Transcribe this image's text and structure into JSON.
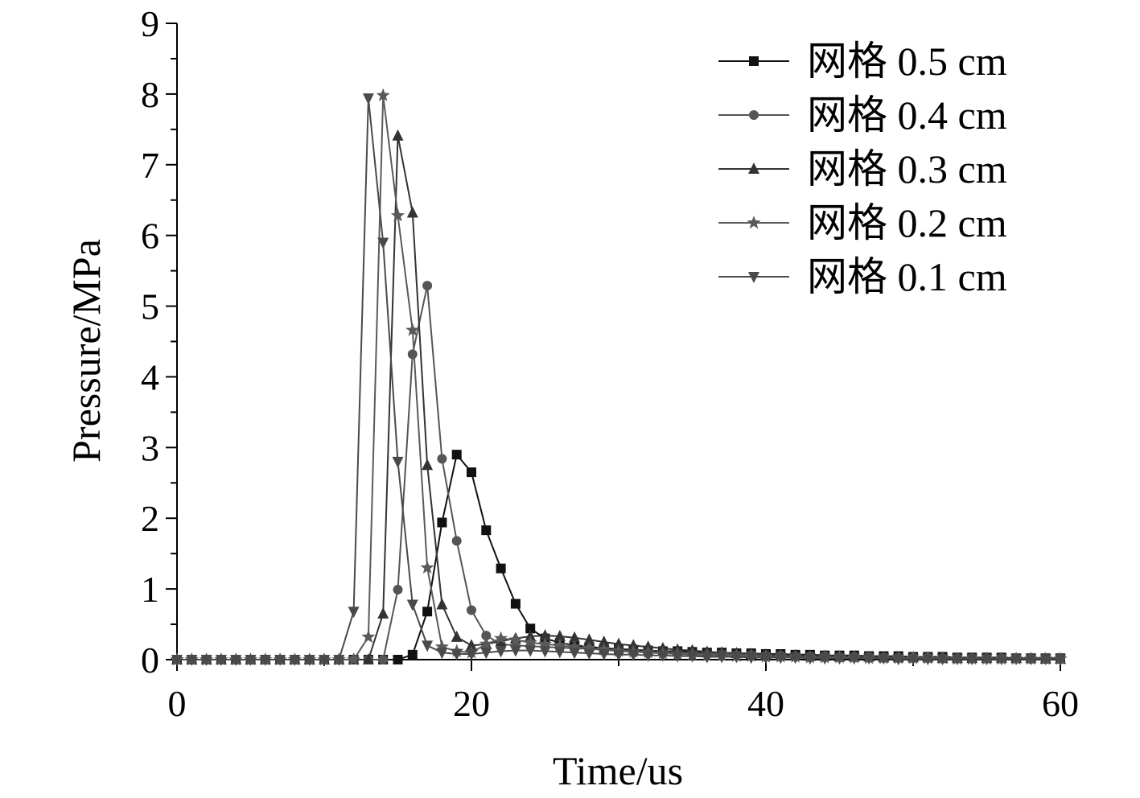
{
  "chart_data": {
    "type": "line",
    "title": "",
    "xlabel": "Time/us",
    "ylabel": "Pressure/MPa",
    "xlim": [
      0,
      60
    ],
    "ylim": [
      0,
      9
    ],
    "xticks": [
      0,
      20,
      40,
      60
    ],
    "yticks": [
      0,
      1,
      2,
      3,
      4,
      5,
      6,
      7,
      8,
      9
    ],
    "grid": false,
    "legend_position": "top-right",
    "x": [
      0,
      1,
      2,
      3,
      4,
      5,
      6,
      7,
      8,
      9,
      10,
      11,
      12,
      13,
      14,
      15,
      16,
      17,
      18,
      19,
      20,
      21,
      22,
      23,
      24,
      25,
      26,
      27,
      28,
      29,
      30,
      31,
      32,
      33,
      34,
      35,
      36,
      37,
      38,
      39,
      40,
      41,
      42,
      43,
      44,
      45,
      46,
      47,
      48,
      49,
      50,
      51,
      52,
      53,
      54,
      55,
      56,
      57,
      58,
      59,
      60
    ],
    "series": [
      {
        "name": "网格 0.5 cm",
        "marker": "square",
        "color": "#111111",
        "values": [
          0,
          0,
          0,
          0,
          0,
          0,
          0,
          0,
          0,
          0,
          0,
          0,
          0,
          0,
          0,
          0,
          0.07,
          0.68,
          1.94,
          2.9,
          2.65,
          1.83,
          1.29,
          0.79,
          0.44,
          0.3,
          0.24,
          0.2,
          0.18,
          0.16,
          0.15,
          0.14,
          0.13,
          0.12,
          0.12,
          0.11,
          0.1,
          0.1,
          0.09,
          0.09,
          0.08,
          0.08,
          0.07,
          0.07,
          0.06,
          0.06,
          0.06,
          0.05,
          0.05,
          0.05,
          0.04,
          0.04,
          0.04,
          0.03,
          0.03,
          0.03,
          0.03,
          0.02,
          0.02,
          0.02,
          0.02
        ]
      },
      {
        "name": "网格 0.4 cm",
        "marker": "circle",
        "color": "#555555",
        "values": [
          0,
          0,
          0,
          0,
          0,
          0,
          0,
          0,
          0,
          0,
          0,
          0,
          0,
          0,
          0,
          0.99,
          4.32,
          5.29,
          2.84,
          1.68,
          0.7,
          0.34,
          0.22,
          0.2,
          0.19,
          0.18,
          0.17,
          0.16,
          0.15,
          0.14,
          0.13,
          0.12,
          0.11,
          0.1,
          0.1,
          0.09,
          0.08,
          0.08,
          0.07,
          0.07,
          0.06,
          0.06,
          0.05,
          0.05,
          0.05,
          0.04,
          0.04,
          0.04,
          0.03,
          0.03,
          0.03,
          0.03,
          0.02,
          0.02,
          0.02,
          0.02,
          0.02,
          0.02,
          0.01,
          0.01,
          0.01
        ]
      },
      {
        "name": "网格 0.3 cm",
        "marker": "triangle-up",
        "color": "#333333",
        "values": [
          0,
          0,
          0,
          0,
          0,
          0,
          0,
          0,
          0,
          0,
          0,
          0,
          0,
          0,
          0.65,
          7.41,
          6.32,
          2.75,
          0.78,
          0.32,
          0.2,
          0.22,
          0.26,
          0.3,
          0.33,
          0.34,
          0.33,
          0.31,
          0.28,
          0.25,
          0.22,
          0.2,
          0.18,
          0.16,
          0.14,
          0.13,
          0.11,
          0.1,
          0.09,
          0.08,
          0.07,
          0.06,
          0.06,
          0.05,
          0.05,
          0.04,
          0.04,
          0.04,
          0.03,
          0.03,
          0.03,
          0.03,
          0.02,
          0.02,
          0.02,
          0.02,
          0.02,
          0.02,
          0.02,
          0.01,
          0.01
        ]
      },
      {
        "name": "网格 0.2 cm",
        "marker": "star",
        "color": "#5a5a5a",
        "values": [
          0,
          0,
          0,
          0,
          0,
          0,
          0,
          0,
          0,
          0,
          0,
          0,
          0,
          0.32,
          7.98,
          6.28,
          4.66,
          1.3,
          0.18,
          0.12,
          0.1,
          0.22,
          0.3,
          0.28,
          0.24,
          0.22,
          0.2,
          0.18,
          0.16,
          0.14,
          0.12,
          0.11,
          0.1,
          0.09,
          0.08,
          0.07,
          0.06,
          0.06,
          0.05,
          0.05,
          0.04,
          0.04,
          0.04,
          0.03,
          0.03,
          0.03,
          0.03,
          0.02,
          0.02,
          0.02,
          0.02,
          0.02,
          0.02,
          0.01,
          0.01,
          0.01,
          0.01,
          0.01,
          0.01,
          0.01,
          0.01
        ]
      },
      {
        "name": "网格 0.1 cm",
        "marker": "triangle-down",
        "color": "#4a4a4a",
        "values": [
          0,
          0,
          0,
          0,
          0,
          0,
          0,
          0,
          0,
          0,
          0,
          0,
          0.68,
          7.94,
          5.9,
          2.8,
          0.78,
          0.2,
          0.1,
          0.08,
          0.08,
          0.1,
          0.12,
          0.13,
          0.13,
          0.12,
          0.11,
          0.1,
          0.09,
          0.08,
          0.07,
          0.07,
          0.06,
          0.06,
          0.05,
          0.05,
          0.04,
          0.04,
          0.04,
          0.03,
          0.03,
          0.03,
          0.03,
          0.02,
          0.02,
          0.02,
          0.02,
          0.02,
          0.02,
          0.01,
          0.01,
          0.01,
          0.01,
          0.01,
          0.01,
          0.01,
          0.01,
          0.01,
          0.01,
          0.01,
          0.01
        ]
      }
    ]
  }
}
